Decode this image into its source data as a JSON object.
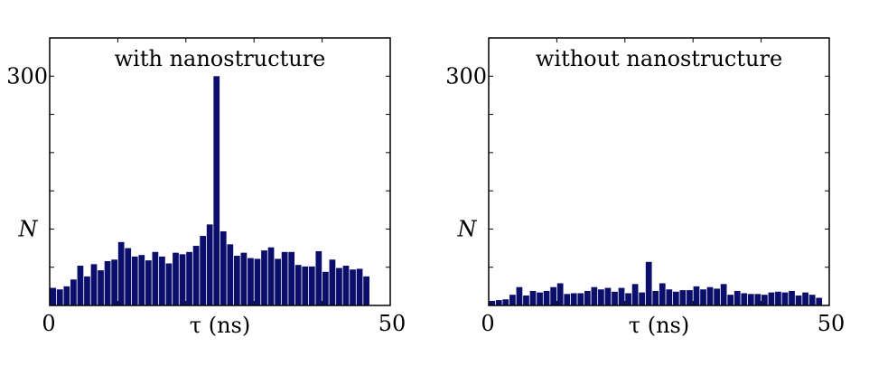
{
  "chart_data": [
    {
      "type": "bar",
      "title": "with nanostructure",
      "xlabel": "τ (ns)",
      "ylabel": "N",
      "xlim": [
        0,
        50
      ],
      "ylim": [
        0,
        350
      ],
      "xticks": [
        "0",
        "50"
      ],
      "yticks": [
        "300"
      ],
      "grid": false,
      "bar_color": "#0b0f6b",
      "bin_width": 1,
      "x": [
        0.5,
        1.5,
        2.5,
        3.5,
        4.5,
        5.5,
        6.5,
        7.5,
        8.5,
        9.5,
        10.5,
        11.5,
        12.5,
        13.5,
        14.5,
        15.5,
        16.5,
        17.5,
        18.5,
        19.5,
        20.5,
        21.5,
        22.5,
        23.5,
        24.5,
        25.5,
        26.5,
        27.5,
        28.5,
        29.5,
        30.5,
        31.5,
        32.5,
        33.5,
        34.5,
        35.5,
        36.5,
        37.5,
        38.5,
        39.5,
        40.5,
        41.5,
        42.5,
        43.5,
        44.5,
        45.5,
        46.5,
        47.5,
        48.5,
        49.5
      ],
      "values": [
        23,
        21,
        25,
        34,
        52,
        38,
        54,
        46,
        58,
        60,
        83,
        75,
        64,
        66,
        59,
        70,
        64,
        55,
        69,
        67,
        70,
        78,
        91,
        106,
        300,
        97,
        80,
        65,
        69,
        62,
        61,
        72,
        76,
        61,
        70,
        70,
        53,
        51,
        51,
        71,
        44,
        60,
        49,
        52,
        47,
        48,
        38,
        null,
        null,
        null
      ]
    },
    {
      "type": "bar",
      "title": "without nanostructure",
      "xlabel": "τ (ns)",
      "ylabel": "N",
      "xlim": [
        0,
        50
      ],
      "ylim": [
        0,
        350
      ],
      "xticks": [
        "0",
        "50"
      ],
      "yticks": [
        "300"
      ],
      "grid": false,
      "bar_color": "#0b0f6b",
      "bin_width": 1,
      "x": [
        0.5,
        1.5,
        2.5,
        3.5,
        4.5,
        5.5,
        6.5,
        7.5,
        8.5,
        9.5,
        10.5,
        11.5,
        12.5,
        13.5,
        14.5,
        15.5,
        16.5,
        17.5,
        18.5,
        19.5,
        20.5,
        21.5,
        22.5,
        23.5,
        24.5,
        25.5,
        26.5,
        27.5,
        28.5,
        29.5,
        30.5,
        31.5,
        32.5,
        33.5,
        34.5,
        35.5,
        36.5,
        37.5,
        38.5,
        39.5,
        40.5,
        41.5,
        42.5,
        43.5,
        44.5,
        45.5,
        46.5,
        47.5,
        48.5,
        49.5
      ],
      "values": [
        6,
        7,
        8,
        14,
        24,
        13,
        19,
        17,
        19,
        24,
        29,
        15,
        16,
        16,
        19,
        24,
        21,
        23,
        18,
        23,
        16,
        28,
        17,
        57,
        19,
        29,
        21,
        18,
        20,
        20,
        25,
        21,
        24,
        22,
        28,
        14,
        19,
        16,
        15,
        15,
        14,
        17,
        18,
        17,
        19,
        13,
        17,
        14,
        10,
        null
      ]
    }
  ]
}
